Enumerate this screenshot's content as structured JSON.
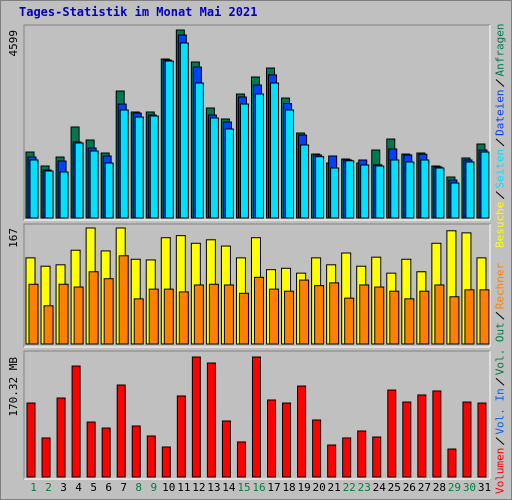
{
  "chart_data": [
    {
      "type": "bar",
      "title": "Tages-Statistik im Monat Mai 2021",
      "ylim": [
        0,
        4599
      ],
      "yticks": [
        4599
      ],
      "series": [
        {
          "name": "Anfragen",
          "color": "#007850",
          "values": [
            1614,
            1272,
            1492,
            2226,
            1908,
            1590,
            3106,
            2593,
            2593,
            3889,
            4599,
            3816,
            2691,
            2422,
            3033,
            3449,
            3669,
            2935,
            2079,
            1565,
            1345,
            1443,
            1345,
            1663,
            1932,
            1565,
            1590,
            1272,
            1003,
            1468,
            1810
          ]
        },
        {
          "name": "Dateien",
          "color": "#0040ff",
          "values": [
            1492,
            1174,
            1394,
            1859,
            1712,
            1517,
            2788,
            2568,
            2519,
            3865,
            4476,
            3693,
            2519,
            2348,
            2960,
            3253,
            3500,
            2800,
            2030,
            1540,
            1517,
            1420,
            1419,
            1300,
            1688,
            1540,
            1560,
            1250,
            929,
            1420,
            1663
          ]
        },
        {
          "name": "Seiten",
          "color": "#00e0ff",
          "values": [
            1420,
            1150,
            1125,
            1835,
            1639,
            1345,
            2642,
            2470,
            2495,
            3840,
            4281,
            3302,
            2446,
            2177,
            2788,
            3033,
            3302,
            2642,
            1786,
            1500,
            1223,
            1400,
            1296,
            1272,
            1419,
            1370,
            1419,
            1223,
            856,
            1370,
            1614
          ]
        }
      ]
    },
    {
      "type": "bar",
      "ylim": [
        0,
        167
      ],
      "yticks": [
        167
      ],
      "series": [
        {
          "name": "Besuche",
          "color": "#ffff00",
          "values": [
            124,
            112,
            114,
            135,
            167,
            134,
            167,
            122,
            121,
            153,
            156,
            145,
            150,
            141,
            124,
            153,
            107,
            109,
            102,
            124,
            114,
            131,
            112,
            125,
            102,
            122,
            104,
            145,
            163,
            160,
            124
          ]
        },
        {
          "name": "Rechner",
          "color": "#ff8000",
          "values": [
            86,
            55,
            86,
            82,
            104,
            94,
            127,
            65,
            79,
            79,
            75,
            85,
            86,
            85,
            73,
            96,
            79,
            76,
            92,
            84,
            88,
            66,
            85,
            82,
            76,
            65,
            76,
            85,
            68,
            78,
            78
          ]
        }
      ]
    },
    {
      "type": "bar",
      "ylim": [
        0,
        170.32
      ],
      "yticks": [
        {
          "value": 170.32,
          "label": "170.32 MB"
        }
      ],
      "categories": [
        "1",
        "2",
        "3",
        "4",
        "5",
        "6",
        "7",
        "8",
        "9",
        "10",
        "11",
        "12",
        "13",
        "14",
        "15",
        "16",
        "17",
        "18",
        "19",
        "20",
        "21",
        "22",
        "23",
        "24",
        "25",
        "26",
        "27",
        "28",
        "29",
        "30",
        "31"
      ],
      "weekend_categories": [
        "1",
        "2",
        "8",
        "9",
        "15",
        "16",
        "22",
        "23",
        "29",
        "30"
      ],
      "weekend_color": "#008040",
      "series": [
        {
          "name": "Volumen",
          "color": "#ff0000",
          "values": [
            105.0,
            55.4,
            112.1,
            157.5,
            78.0,
            69.5,
            130.6,
            72.4,
            58.2,
            42.6,
            115.0,
            170.32,
            161.8,
            79.5,
            49.7,
            170.3,
            109.3,
            105.0,
            129.1,
            80.9,
            45.4,
            55.4,
            65.3,
            56.8,
            123.4,
            106.4,
            116.4,
            122.1,
            39.7,
            106.4,
            105.0
          ]
        },
        {
          "name": "Vol. In",
          "color": "#0060ff"
        },
        {
          "name": "Vol. Out",
          "color": "#008040"
        }
      ]
    }
  ]
}
